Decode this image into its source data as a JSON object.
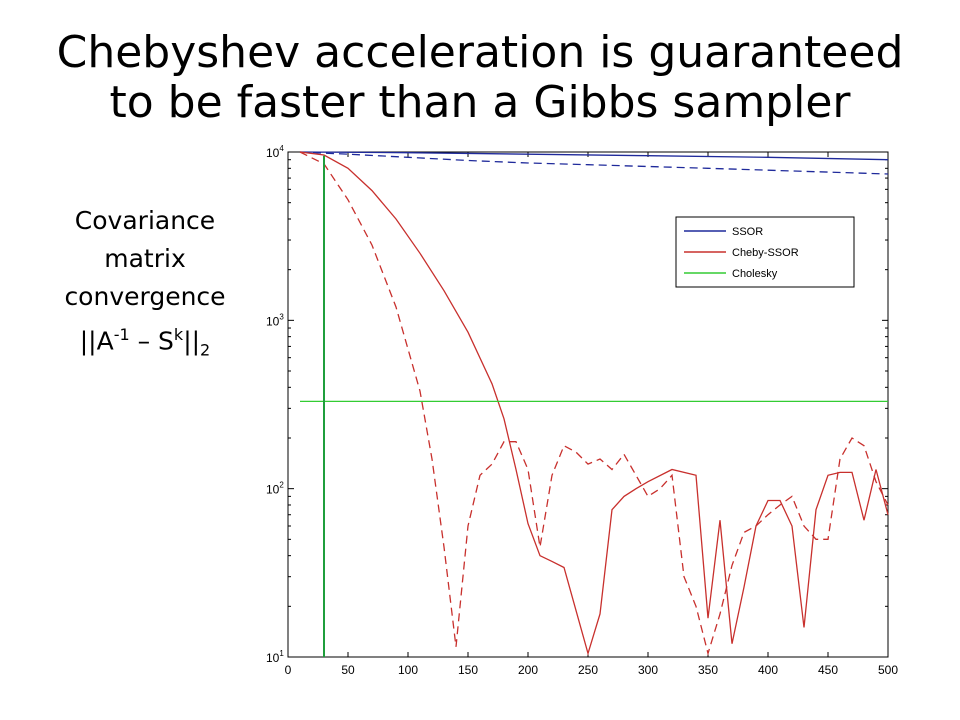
{
  "slide": {
    "title_line1": "Chebyshev acceleration is guaranteed",
    "title_line2": "to be faster than a Gibbs sampler",
    "side_label_line1": "Covariance",
    "side_label_line2": "matrix",
    "side_label_line3": "convergence",
    "side_label_norm_open": "||A",
    "side_label_norm_exp": "-1",
    "side_label_norm_mid": " – S",
    "side_label_norm_k": "k",
    "side_label_norm_close": "||",
    "side_label_norm_sub": "2"
  },
  "chart_data": {
    "type": "line",
    "title": "",
    "xlabel": "",
    "ylabel": "",
    "xlim": [
      0,
      500
    ],
    "ylim": [
      10,
      10000
    ],
    "yscale": "log",
    "grid": false,
    "legend_position": "top-right",
    "x_ticks": [
      0,
      50,
      100,
      150,
      200,
      250,
      300,
      350,
      400,
      450,
      500
    ],
    "y_ticks": [
      {
        "base": "10",
        "exp": "1",
        "value": 10
      },
      {
        "base": "10",
        "exp": "2",
        "value": 100
      },
      {
        "base": "10",
        "exp": "3",
        "value": 1000
      },
      {
        "base": "10",
        "exp": "4",
        "value": 10000
      }
    ],
    "legend": [
      {
        "label": "SSOR",
        "color": "#1f2a9b"
      },
      {
        "label": "Cheby-SSOR",
        "color": "#c8302d"
      },
      {
        "label": "Cholesky",
        "color": "#33cc33"
      }
    ],
    "series": [
      {
        "legend": "SSOR",
        "style": "solid",
        "color": "#1f2a9b",
        "points": [
          [
            10,
            10000
          ],
          [
            100,
            9900
          ],
          [
            200,
            9700
          ],
          [
            300,
            9500
          ],
          [
            400,
            9300
          ],
          [
            500,
            9000
          ]
        ]
      },
      {
        "legend": "SSOR",
        "style": "dashed",
        "color": "#1f2a9b",
        "points": [
          [
            10,
            10000
          ],
          [
            50,
            9700
          ],
          [
            100,
            9300
          ],
          [
            150,
            8900
          ],
          [
            200,
            8600
          ],
          [
            250,
            8400
          ],
          [
            300,
            8200
          ],
          [
            350,
            8000
          ],
          [
            400,
            7800
          ],
          [
            450,
            7600
          ],
          [
            500,
            7400
          ]
        ]
      },
      {
        "legend": "Cheby-SSOR",
        "style": "solid",
        "color": "#c8302d",
        "points": [
          [
            10,
            10000
          ],
          [
            30,
            9600
          ],
          [
            50,
            8000
          ],
          [
            70,
            5900
          ],
          [
            90,
            4000
          ],
          [
            110,
            2500
          ],
          [
            130,
            1500
          ],
          [
            150,
            850
          ],
          [
            170,
            420
          ],
          [
            180,
            260
          ],
          [
            190,
            130
          ],
          [
            200,
            62
          ],
          [
            210,
            40
          ],
          [
            220,
            37
          ],
          [
            230,
            34
          ],
          [
            250,
            10.5
          ],
          [
            260,
            18
          ],
          [
            270,
            75
          ],
          [
            280,
            90
          ],
          [
            290,
            100
          ],
          [
            300,
            110
          ],
          [
            320,
            130
          ],
          [
            340,
            120
          ],
          [
            350,
            17
          ],
          [
            360,
            65
          ],
          [
            370,
            12
          ],
          [
            380,
            26
          ],
          [
            390,
            60
          ],
          [
            400,
            85
          ],
          [
            410,
            85
          ],
          [
            420,
            60
          ],
          [
            430,
            15
          ],
          [
            440,
            75
          ],
          [
            450,
            120
          ],
          [
            460,
            125
          ],
          [
            470,
            125
          ],
          [
            480,
            65
          ],
          [
            490,
            130
          ],
          [
            500,
            70
          ]
        ]
      },
      {
        "legend": "Cheby-SSOR",
        "style": "dashed",
        "color": "#c8302d",
        "points": [
          [
            10,
            10000
          ],
          [
            30,
            8500
          ],
          [
            50,
            5200
          ],
          [
            70,
            2800
          ],
          [
            90,
            1200
          ],
          [
            110,
            380
          ],
          [
            120,
            150
          ],
          [
            130,
            45
          ],
          [
            140,
            11.5
          ],
          [
            150,
            60
          ],
          [
            160,
            120
          ],
          [
            170,
            140
          ],
          [
            180,
            190
          ],
          [
            190,
            190
          ],
          [
            200,
            130
          ],
          [
            210,
            45
          ],
          [
            220,
            120
          ],
          [
            230,
            180
          ],
          [
            240,
            165
          ],
          [
            250,
            140
          ],
          [
            260,
            150
          ],
          [
            270,
            130
          ],
          [
            280,
            160
          ],
          [
            290,
            120
          ],
          [
            300,
            90
          ],
          [
            310,
            100
          ],
          [
            320,
            120
          ],
          [
            330,
            30
          ],
          [
            340,
            20
          ],
          [
            350,
            10.5
          ],
          [
            360,
            18
          ],
          [
            370,
            35
          ],
          [
            380,
            55
          ],
          [
            390,
            60
          ],
          [
            400,
            70
          ],
          [
            410,
            80
          ],
          [
            420,
            90
          ],
          [
            430,
            60
          ],
          [
            440,
            50
          ],
          [
            450,
            50
          ],
          [
            460,
            150
          ],
          [
            470,
            200
          ],
          [
            480,
            180
          ],
          [
            490,
            110
          ],
          [
            500,
            80
          ]
        ]
      },
      {
        "legend": "Cholesky",
        "style": "solid",
        "color": "#33cc33",
        "points": [
          [
            10,
            330
          ],
          [
            500,
            330
          ]
        ]
      },
      {
        "legend": "Cholesky",
        "style": "vertical",
        "color": "#1f9e3c",
        "points": [
          [
            30,
            10
          ],
          [
            30,
            9500
          ]
        ]
      }
    ]
  }
}
